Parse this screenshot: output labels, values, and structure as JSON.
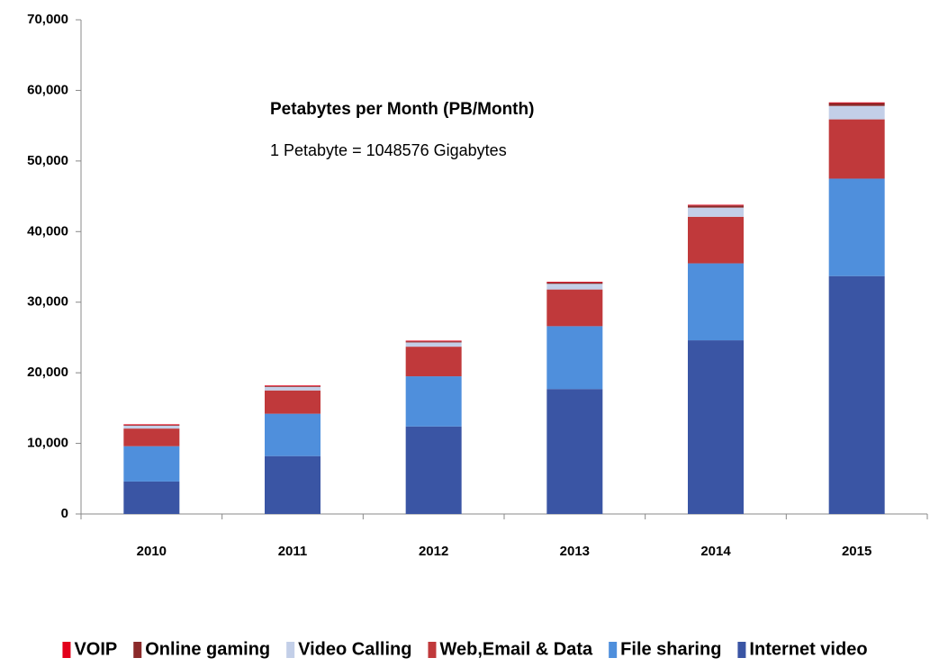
{
  "chart_data": {
    "type": "stacked_bar",
    "annotations": [
      "Petabytes per Month (PB/Month)",
      "1 Petabyte = 1048576 Gigabytes"
    ],
    "categories": [
      "2010",
      "2011",
      "2012",
      "2013",
      "2014",
      "2015"
    ],
    "series": [
      {
        "name": "Internet video",
        "color": "#3a55a4",
        "values": [
          4600,
          8200,
          12400,
          17700,
          24600,
          33700
        ]
      },
      {
        "name": "File sharing",
        "color": "#4f8fdc",
        "values": [
          5000,
          6000,
          7100,
          8900,
          10900,
          13800
        ]
      },
      {
        "name": "Web,Email & Data",
        "color": "#c0393b",
        "values": [
          2500,
          3300,
          4200,
          5200,
          6600,
          8400
        ]
      },
      {
        "name": "Video Calling",
        "color": "#c3cfe8",
        "values": [
          400,
          500,
          600,
          800,
          1300,
          1900
        ]
      },
      {
        "name": "Online gaming",
        "color": "#8b2a2a",
        "values": [
          100,
          100,
          150,
          200,
          300,
          400
        ]
      },
      {
        "name": "VOIP",
        "color": "#e3001b",
        "values": [
          100,
          100,
          100,
          100,
          100,
          100
        ]
      }
    ],
    "ylim": [
      0,
      70000
    ],
    "yticks": [
      0,
      {
        "value": 10000,
        "label": "10,000"
      },
      {
        "value": 20000,
        "label": "20,000"
      },
      {
        "value": 30000,
        "label": "30,000"
      },
      {
        "value": 40000,
        "label": "40,000"
      },
      {
        "value": 50000,
        "label": "50,000"
      },
      {
        "value": 60000,
        "label": "60,000"
      },
      {
        "value": 70000,
        "label": "70,000"
      }
    ],
    "grid": false
  }
}
